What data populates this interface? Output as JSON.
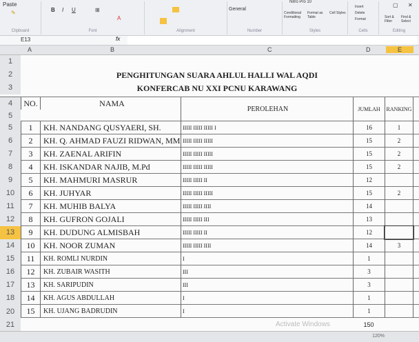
{
  "window": {
    "title": "Nitro Pro 10"
  },
  "ribbon": {
    "groups": [
      "Clipboard",
      "Font",
      "Alignment",
      "Number",
      "Styles",
      "Cells",
      "Editing"
    ],
    "paste": "Paste",
    "bold": "B",
    "italic": "I",
    "underline": "U",
    "number_format": "General",
    "conditional_formatting": "Conditional Formatting",
    "format_as_table": "Format as Table",
    "cell_styles": "Cell Styles",
    "insert": "Insert",
    "delete": "Delete",
    "format": "Format",
    "sort_filter": "Sort & Filter",
    "find_select": "Find & Select"
  },
  "formula_bar": {
    "name_box": "E13",
    "fx": "fx",
    "value": ""
  },
  "columns": [
    "A",
    "B",
    "C",
    "D",
    "E"
  ],
  "sheet": {
    "title1": "PENGHITUNGAN SUARA AHLUL HALLI WAL AQDI",
    "title2": "KONFERCAB NU XXI PCNU KARAWANG",
    "headers": {
      "no": "NO.",
      "nama": "NAMA",
      "perolehan": "PEROLEHAN",
      "jumlah": "JUMLAH",
      "ranking": "RANKING"
    },
    "rows": [
      {
        "no": "1",
        "nama": "KH. NANDANG QUSYAERI, SH.",
        "perolehan": "IIIII IIIII IIIII I",
        "jumlah": "16",
        "ranking": "1"
      },
      {
        "no": "2",
        "nama": "KH. Q. AHMAD FAUZI RIDWAN, MM",
        "perolehan": "IIIII IIIII IIIII",
        "jumlah": "15",
        "ranking": "2"
      },
      {
        "no": "3",
        "nama": "KH. ZAENAL ARIFIN",
        "perolehan": "IIIII IIIII IIIII",
        "jumlah": "15",
        "ranking": "2"
      },
      {
        "no": "4",
        "nama": "KH. ISKANDAR NAJIB, M.Pd",
        "perolehan": "IIIII IIIII IIIII",
        "jumlah": "15",
        "ranking": "2"
      },
      {
        "no": "5",
        "nama": "KH. MAHMURI MASRUR",
        "perolehan": "IIIII IIIII II",
        "jumlah": "12",
        "ranking": ""
      },
      {
        "no": "6",
        "nama": "KH. JUHYAR",
        "perolehan": "IIIII IIIII IIIII",
        "jumlah": "15",
        "ranking": "2"
      },
      {
        "no": "7",
        "nama": "KH. MUHIB BALYA",
        "perolehan": "IIIII IIIII IIII",
        "jumlah": "14",
        "ranking": ""
      },
      {
        "no": "8",
        "nama": "KH. GUFRON GOJALI",
        "perolehan": "IIIII IIIII III",
        "jumlah": "13",
        "ranking": ""
      },
      {
        "no": "9",
        "nama": "KH. DUDUNG ALMISBAH",
        "perolehan": "IIIII IIIII II",
        "jumlah": "12",
        "ranking": ""
      },
      {
        "no": "10",
        "nama": "KH. NOOR ZUMAN",
        "perolehan": "IIIII IIIII IIII",
        "jumlah": "14",
        "ranking": "3"
      },
      {
        "no": "11",
        "nama": "KH. ROMLI NURDIN",
        "perolehan": "I",
        "jumlah": "1",
        "ranking": ""
      },
      {
        "no": "12",
        "nama": "KH. ZUBAIR WASITH",
        "perolehan": "III",
        "jumlah": "3",
        "ranking": ""
      },
      {
        "no": "13",
        "nama": "KH. SARIPUDIN",
        "perolehan": "III",
        "jumlah": "3",
        "ranking": ""
      },
      {
        "no": "14",
        "nama": "KH. AGUS ABDULLAH",
        "perolehan": "I",
        "jumlah": "1",
        "ranking": ""
      },
      {
        "no": "15",
        "nama": "KH. UJANG BADRUDIN",
        "perolehan": "I",
        "jumlah": "1",
        "ranking": ""
      }
    ],
    "total": "150"
  },
  "watermark": "Activate Windows",
  "status": {
    "zoom": "120%"
  },
  "colors": {
    "accent": "#f5c242"
  }
}
